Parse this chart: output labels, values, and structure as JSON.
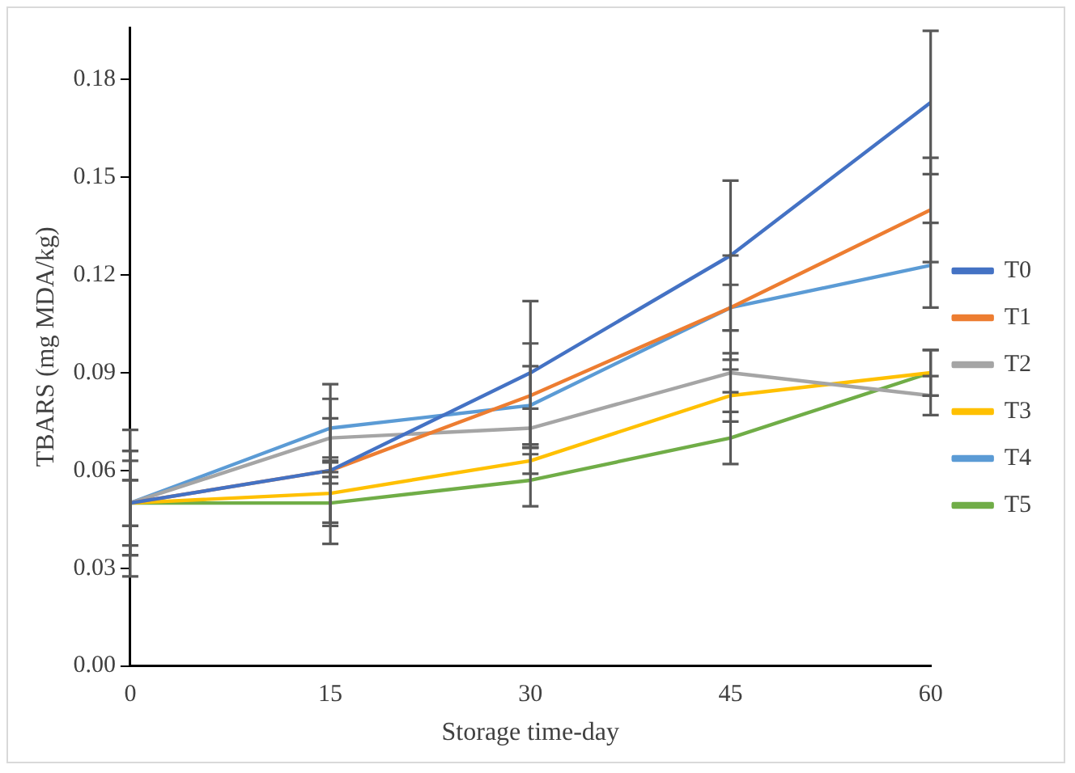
{
  "chart_data": {
    "type": "line",
    "xlabel": "Storage time-day",
    "ylabel": "TBARS (mg MDA/kg)",
    "categories": [
      "0",
      "15",
      "30",
      "45",
      "60"
    ],
    "ylim": [
      0,
      0.196
    ],
    "yticks": [
      {
        "value": 0,
        "label": "0.00"
      },
      {
        "value": 0.03,
        "label": "0.03"
      },
      {
        "value": 0.06,
        "label": "0.06"
      },
      {
        "value": 0.09,
        "label": "0.09"
      },
      {
        "value": 0.12,
        "label": "0.12"
      },
      {
        "value": 0.15,
        "label": "0.15"
      },
      {
        "value": 0.18,
        "label": "0.18"
      }
    ],
    "grid": false,
    "legend": "right",
    "marker": "none",
    "line_style": "solid",
    "series": [
      {
        "name": "T0",
        "color": "#4472c4",
        "values": [
          0.05,
          0.06,
          0.09,
          0.126,
          0.173
        ],
        "errors": [
          0.0225,
          0.016,
          0.022,
          0.023,
          0.022
        ]
      },
      {
        "name": "T1",
        "color": "#ed7d31",
        "values": [
          0.05,
          0.06,
          0.083,
          0.11,
          0.14
        ],
        "errors": [
          0.016,
          0.004,
          0.016,
          0.016,
          0.016
        ]
      },
      {
        "name": "T2",
        "color": "#a5a5a5",
        "values": [
          0.05,
          0.07,
          0.073,
          0.09,
          0.083
        ],
        "errors": [
          0.013,
          0.012,
          0.006,
          0.006,
          0.006
        ]
      },
      {
        "name": "T3",
        "color": "#ffc000",
        "values": [
          0.05,
          0.053,
          0.063,
          0.083,
          0.09
        ],
        "errors": [
          0.007,
          0.01,
          0.004,
          0.008,
          0.007
        ]
      },
      {
        "name": "T4",
        "color": "#5b9bd5",
        "values": [
          0.05,
          0.073,
          0.08,
          0.11,
          0.123
        ],
        "errors": [
          0.016,
          0.0135,
          0.012,
          0.007,
          0.013
        ]
      },
      {
        "name": "T5",
        "color": "#70ad47",
        "values": [
          0.05,
          0.05,
          0.057,
          0.07,
          0.09
        ],
        "errors": [
          0.007,
          0.0125,
          0.008,
          0.008,
          0.007
        ]
      }
    ]
  }
}
